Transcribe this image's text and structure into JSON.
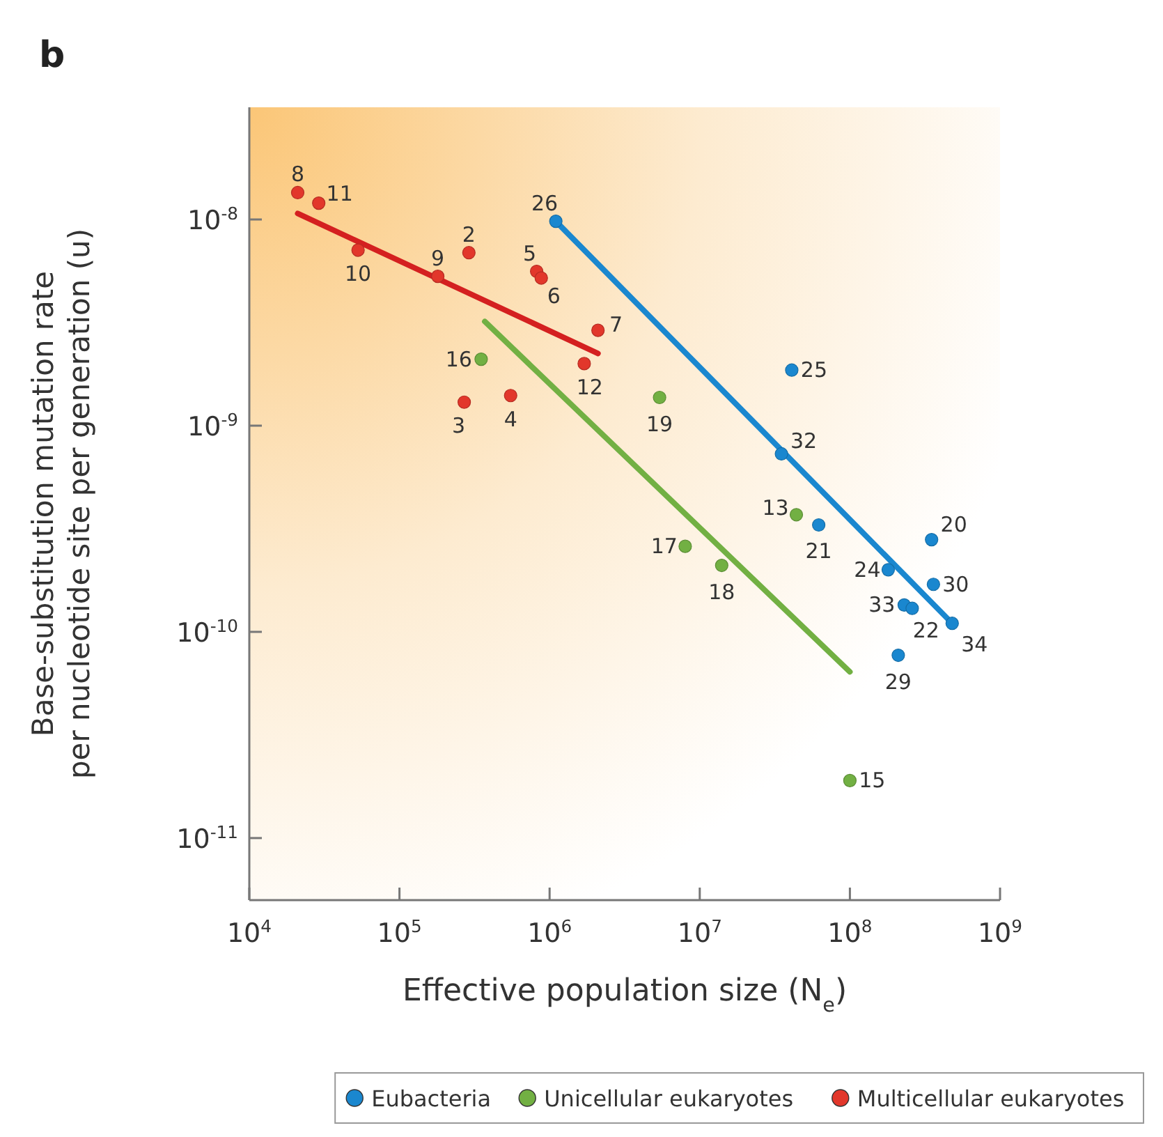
{
  "chart_data": {
    "type": "scatter",
    "title": "b",
    "xlabel": "Effective population size (N$_{e}$)",
    "ylabel": "Base-substitution mutation rate\nper nucleotide site per generation (u)",
    "log": "xy",
    "grid": false,
    "legend": "bottom",
    "marker": "circle",
    "xlim": [
      10000,
      1000000000
    ],
    "xticks": [
      {
        "value": 10000,
        "label": "10$^{4}$"
      },
      {
        "value": 100000,
        "label": "10$^{5}$"
      },
      {
        "value": 1000000,
        "label": "10$^{6}$"
      },
      {
        "value": 10000000,
        "label": "10$^{7}$"
      },
      {
        "value": 100000000,
        "label": "10$^{8}$"
      },
      {
        "value": 1000000000,
        "label": "10$^{9}$"
      }
    ],
    "ylim": [
      5e-12,
      3.5e-08
    ],
    "yticks": [
      {
        "value": 1e-11,
        "label": "10$^{-11}$"
      },
      {
        "value": 1e-10,
        "label": "10$^{-10}$"
      },
      {
        "value": 1e-09,
        "label": "10$^{-9}$"
      },
      {
        "value": 1e-08,
        "label": "10$^{-8}$"
      }
    ],
    "series": [
      {
        "name": "Eubacteria",
        "color": "#1a87cf",
        "x": [
          1100000,
          41000000,
          35000000,
          62000000,
          350000000,
          180000000,
          360000000,
          230000000,
          260000000,
          480000000,
          210000000
        ],
        "values": [
          9.8e-09,
          1.86e-09,
          7.3e-10,
          3.3e-10,
          2.8e-10,
          2e-10,
          1.7e-10,
          1.35e-10,
          1.3e-10,
          1.1e-10,
          7.7e-11
        ]
      },
      {
        "name": "Unicellular eukaryotes",
        "color": "#72b043",
        "x": [
          350000,
          5400000,
          44000000,
          8000000,
          14000000,
          100000000
        ],
        "values": [
          2.1e-09,
          1.37e-09,
          3.7e-10,
          2.6e-10,
          2.1e-10,
          1.9e-11
        ]
      },
      {
        "name": "Multicellular eukaryotes",
        "color": "#e2372b",
        "x": [
          21000,
          29000,
          53000,
          180000,
          290000,
          820000,
          880000,
          2100000,
          1700000,
          270000,
          550000
        ],
        "values": [
          1.35e-08,
          1.2e-08,
          7.1e-09,
          5.3e-09,
          6.9e-09,
          5.6e-09,
          5.2e-09,
          2.9e-09,
          2e-09,
          1.3e-09,
          1.4e-09
        ]
      },
      {
        "type": "line",
        "marker": "none",
        "color": "#1a87cf",
        "x": [
          1100000,
          480000000
        ],
        "values": [
          9.8e-09,
          1.1e-10
        ]
      },
      {
        "type": "line",
        "marker": "none",
        "color": "#72b043",
        "x": [
          370000,
          100000000
        ],
        "values": [
          3.2e-09,
          6.4e-11
        ]
      },
      {
        "type": "line",
        "marker": "none",
        "color": "#d42020",
        "x": [
          21000,
          2100000
        ],
        "values": [
          1.07e-08,
          2.24e-09
        ]
      }
    ],
    "annotations": [
      {
        "text": "26",
        "x": 1100000,
        "y": 9.8e-09
      },
      {
        "text": "25",
        "x": 41000000,
        "y": 1.86e-09
      },
      {
        "text": "32",
        "x": 35000000,
        "y": 7.3e-10
      },
      {
        "text": "21",
        "x": 62000000,
        "y": 3.3e-10
      },
      {
        "text": "20",
        "x": 350000000,
        "y": 2.8e-10
      },
      {
        "text": "24",
        "x": 180000000,
        "y": 2e-10
      },
      {
        "text": "30",
        "x": 360000000,
        "y": 1.7e-10
      },
      {
        "text": "33",
        "x": 230000000,
        "y": 1.35e-10
      },
      {
        "text": "22",
        "x": 260000000,
        "y": 1.3e-10
      },
      {
        "text": "34",
        "x": 480000000,
        "y": 1.1e-10
      },
      {
        "text": "29",
        "x": 210000000,
        "y": 7.7e-11
      },
      {
        "text": "16",
        "x": 350000,
        "y": 2.1e-09
      },
      {
        "text": "19",
        "x": 5400000,
        "y": 1.37e-09
      },
      {
        "text": "13",
        "x": 44000000,
        "y": 3.7e-10
      },
      {
        "text": "17",
        "x": 8000000,
        "y": 2.6e-10
      },
      {
        "text": "18",
        "x": 14000000,
        "y": 2.1e-10
      },
      {
        "text": "15",
        "x": 100000000,
        "y": 1.9e-11
      },
      {
        "text": "8",
        "x": 21000,
        "y": 1.35e-08
      },
      {
        "text": "11",
        "x": 29000,
        "y": 1.2e-08
      },
      {
        "text": "10",
        "x": 53000,
        "y": 7.1e-09
      },
      {
        "text": "9",
        "x": 180000,
        "y": 5.3e-09
      },
      {
        "text": "2",
        "x": 290000,
        "y": 6.9e-09
      },
      {
        "text": "5",
        "x": 820000,
        "y": 5.6e-09
      },
      {
        "text": "6",
        "x": 880000,
        "y": 5.2e-09
      },
      {
        "text": "7",
        "x": 2100000,
        "y": 2.9e-09
      },
      {
        "text": "12",
        "x": 1700000,
        "y": 2e-09
      },
      {
        "text": "3",
        "x": 270000,
        "y": 1.3e-09
      },
      {
        "text": "4",
        "x": 550000,
        "y": 1.4e-09
      }
    ]
  }
}
